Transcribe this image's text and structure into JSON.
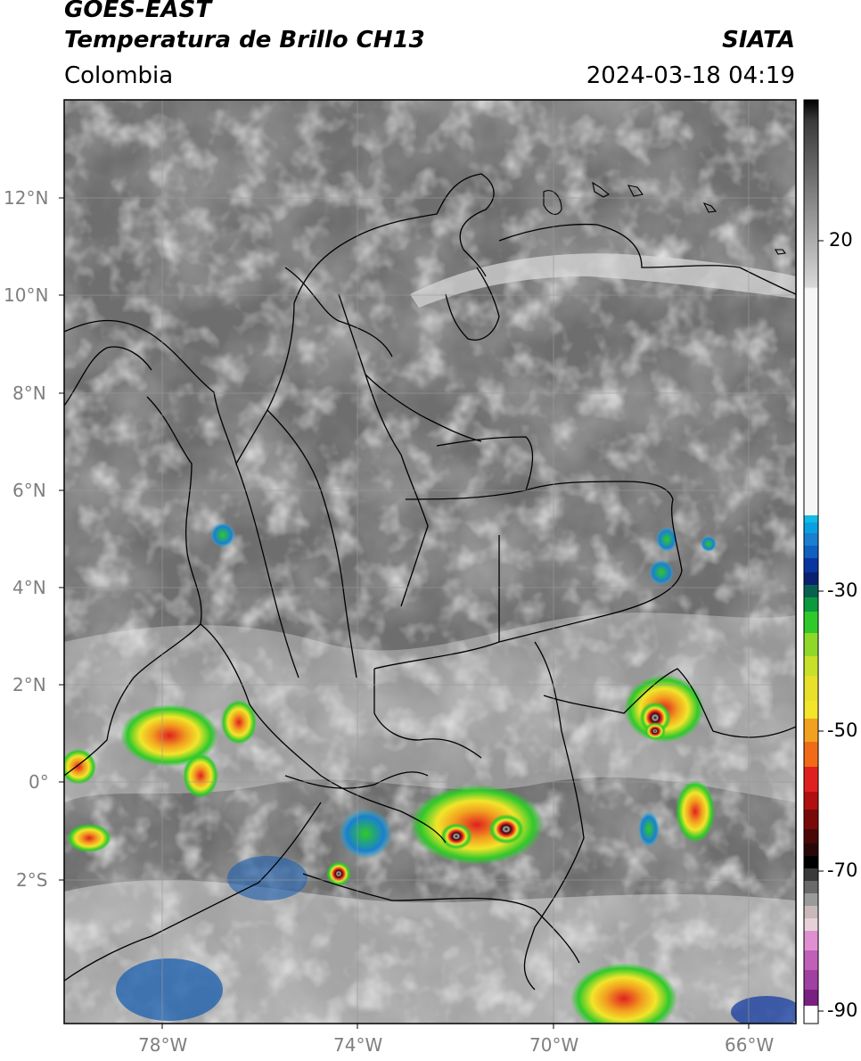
{
  "header": {
    "satellite": "GOES-EAST",
    "product": "Temperatura de Brillo CH13",
    "region": "Colombia",
    "source": "SIATA",
    "timestamp": "2024-03-18 04:19"
  },
  "map": {
    "lat_labels": [
      "12°N",
      "10°N",
      "8°N",
      "6°N",
      "4°N",
      "2°N",
      "0°",
      "2°S"
    ],
    "lon_labels": [
      "78°W",
      "74°W",
      "70°W",
      "66°W"
    ],
    "lat_range": [
      -4.9,
      14.0
    ],
    "lon_range": [
      -79.9,
      -64.9
    ],
    "grid_spacing_deg": 2
  },
  "colorbar": {
    "tick_labels": [
      "20",
      "-30",
      "-50",
      "-70",
      "-90"
    ],
    "range": [
      -92,
      37
    ]
  },
  "colors": {
    "warm_background": "#6f6f6f",
    "cold_cloud_white": "#f2f2f2",
    "cyan": "#14b9e6",
    "blue": "#0a35a0",
    "green": "#2fc92a",
    "yellow": "#f2e52a",
    "red": "#e02020",
    "dark_core": "#2a1010",
    "magenta": "#d05fc0"
  }
}
